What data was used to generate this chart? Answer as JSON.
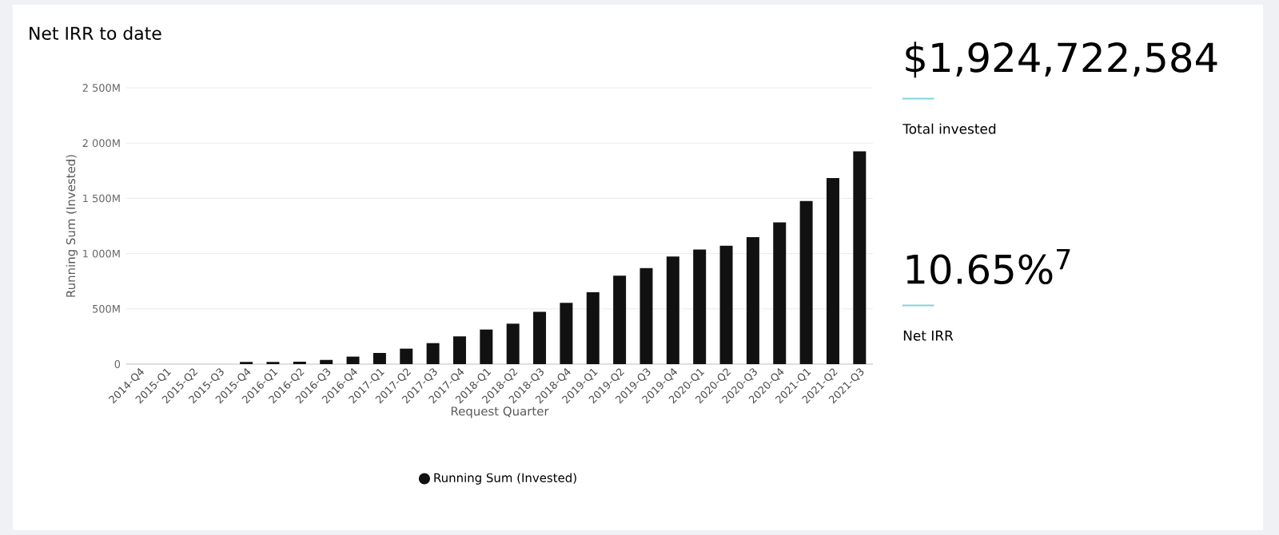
{
  "chart_data": [
    {
      "type": "bar",
      "title": "Net IRR to date",
      "xlabel": "Request Quarter",
      "ylabel": "Running Sum (Invested)",
      "categories": [
        "2014-Q4",
        "2015-Q1",
        "2015-Q2",
        "2015-Q3",
        "2015-Q4",
        "2016-Q1",
        "2016-Q2",
        "2016-Q3",
        "2016-Q4",
        "2017-Q1",
        "2017-Q2",
        "2017-Q3",
        "2017-Q4",
        "2018-Q1",
        "2018-Q2",
        "2018-Q3",
        "2018-Q4",
        "2019-Q1",
        "2019-Q2",
        "2019-Q3",
        "2019-Q4",
        "2020-Q1",
        "2020-Q2",
        "2020-Q3",
        "2020-Q4",
        "2021-Q1",
        "2021-Q2",
        "2021-Q3"
      ],
      "series": [
        {
          "name": "Running Sum (Invested)",
          "color": "#111111",
          "values": [
            0,
            0,
            0,
            0,
            20,
            20,
            22,
            38,
            68,
            101,
            140,
            190,
            251,
            313,
            366,
            473,
            555,
            651,
            801,
            868,
            974,
            1037,
            1071,
            1148,
            1283,
            1476,
            1683,
            1925
          ]
        }
      ],
      "ylim": [
        0,
        2500
      ],
      "yticks": [
        0,
        {
          "value": 500,
          "label": "500M"
        },
        {
          "value": 1000,
          "label": "1 000M"
        },
        {
          "value": 1500,
          "label": "1 500M"
        },
        {
          "value": 2000,
          "label": "2 000M"
        },
        {
          "value": 2500,
          "label": "2 500M"
        }
      ],
      "grid": "y",
      "legend": "bottom",
      "marker": "circle"
    },
    {
      "type": "other",
      "annotations": [
        "$1,924,722,584",
        "Total invested",
        "10.65%$^{7}$",
        "Net IRR"
      ]
    }
  ]
}
